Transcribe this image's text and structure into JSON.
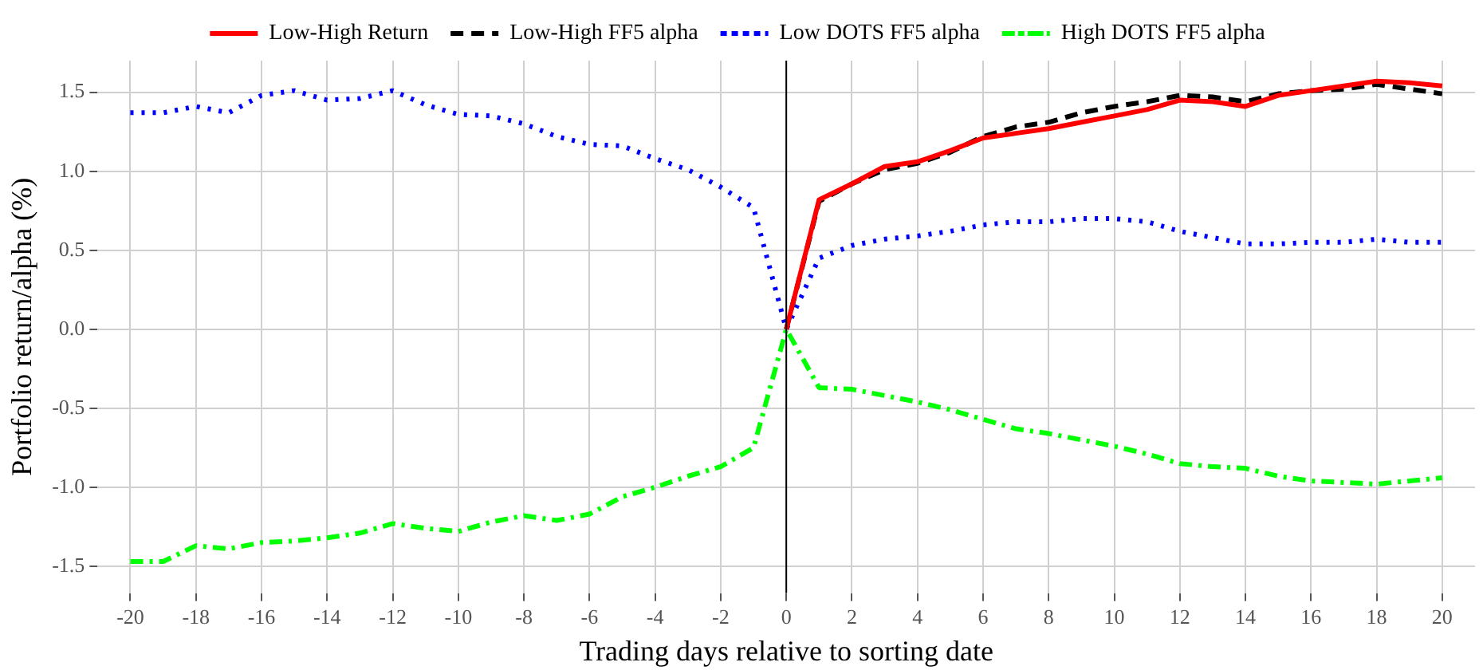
{
  "chart_data": {
    "type": "line",
    "xlabel": "Trading days relative to sorting date",
    "ylabel": "Portfolio return/alpha (%)",
    "x": [
      -20,
      -19,
      -18,
      -17,
      -16,
      -15,
      -14,
      -13,
      -12,
      -11,
      -10,
      -9,
      -8,
      -7,
      -6,
      -5,
      -4,
      -3,
      -2,
      -1,
      0,
      1,
      2,
      3,
      4,
      5,
      6,
      7,
      8,
      9,
      10,
      11,
      12,
      13,
      14,
      15,
      16,
      17,
      18,
      19,
      20
    ],
    "series": [
      {
        "name": "Low-High Return",
        "color": "#ff0000",
        "line_style": "solid",
        "values": [
          null,
          null,
          null,
          null,
          null,
          null,
          null,
          null,
          null,
          null,
          null,
          null,
          null,
          null,
          null,
          null,
          null,
          null,
          null,
          null,
          0,
          0.82,
          0.92,
          1.03,
          1.06,
          1.13,
          1.21,
          1.24,
          1.27,
          1.31,
          1.35,
          1.39,
          1.45,
          1.44,
          1.41,
          1.48,
          1.51,
          1.54,
          1.57,
          1.56,
          1.54
        ]
      },
      {
        "name": "Low-High FF5 alpha",
        "color": "#000000",
        "line_style": "dashed",
        "values": [
          null,
          null,
          null,
          null,
          null,
          null,
          null,
          null,
          null,
          null,
          null,
          null,
          null,
          null,
          null,
          null,
          null,
          null,
          null,
          null,
          0,
          0.81,
          0.92,
          1.01,
          1.05,
          1.12,
          1.22,
          1.28,
          1.31,
          1.37,
          1.41,
          1.44,
          1.48,
          1.47,
          1.44,
          1.49,
          1.51,
          1.52,
          1.55,
          1.52,
          1.49
        ]
      },
      {
        "name": "Low DOTS FF5 alpha",
        "color": "#0000ff",
        "line_style": "dotted",
        "values": [
          1.37,
          1.37,
          1.41,
          1.37,
          1.48,
          1.51,
          1.45,
          1.46,
          1.51,
          1.42,
          1.36,
          1.35,
          1.3,
          1.22,
          1.17,
          1.16,
          1.08,
          1.01,
          0.9,
          0.77,
          0,
          0.45,
          0.53,
          0.57,
          0.59,
          0.62,
          0.66,
          0.68,
          0.68,
          0.7,
          0.7,
          0.68,
          0.62,
          0.58,
          0.54,
          0.54,
          0.55,
          0.55,
          0.57,
          0.55,
          0.55
        ]
      },
      {
        "name": "High DOTS FF5 alpha",
        "color": "#00ff00",
        "line_style": "dashdot",
        "values": [
          -1.47,
          -1.47,
          -1.37,
          -1.39,
          -1.35,
          -1.34,
          -1.32,
          -1.29,
          -1.23,
          -1.26,
          -1.28,
          -1.22,
          -1.18,
          -1.21,
          -1.17,
          -1.06,
          -1.0,
          -0.93,
          -0.87,
          -0.75,
          0,
          -0.37,
          -0.38,
          -0.42,
          -0.46,
          -0.51,
          -0.57,
          -0.63,
          -0.66,
          -0.7,
          -0.74,
          -0.79,
          -0.85,
          -0.87,
          -0.88,
          -0.93,
          -0.96,
          -0.97,
          -0.98,
          -0.96,
          -0.94
        ]
      }
    ],
    "xlim": [
      -21,
      21
    ],
    "xticks": [
      -20,
      -18,
      -16,
      -14,
      -12,
      -10,
      -8,
      -6,
      -4,
      -2,
      0,
      2,
      4,
      6,
      8,
      10,
      12,
      14,
      16,
      18,
      20
    ],
    "ylim": [
      -1.67,
      1.7
    ],
    "yticks": [
      {
        "value": -1.5,
        "label": "-1.5"
      },
      {
        "value": -1,
        "label": "-1.0"
      },
      {
        "value": -0.5,
        "label": "-0.5"
      },
      {
        "value": 0,
        "label": "0.0"
      },
      {
        "value": 0.5,
        "label": "0.5"
      },
      {
        "value": 1,
        "label": "1.0"
      },
      {
        "value": 1.5,
        "label": "1.5"
      }
    ],
    "ref_lines": [
      {
        "axis": "x",
        "value": 0,
        "color": "#000000"
      }
    ],
    "grid": true,
    "legend": "top",
    "marker": "none"
  }
}
